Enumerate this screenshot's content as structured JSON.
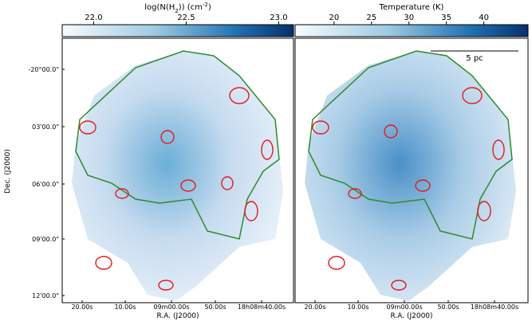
{
  "y_axis": {
    "label": "Dec. (J2000)",
    "ticks": [
      "-20°00.0\"",
      "03'00.0\"",
      "06'00.0\"",
      "09'00.0\"",
      "12'00.0\""
    ]
  },
  "x_axis": {
    "label": "R.A. (J2000)",
    "ticks": [
      "20.00s",
      "10.00s",
      "09m00.00s",
      "50.00s",
      "18h08m40.00s"
    ]
  },
  "panels": [
    {
      "colorbar": {
        "label_parts": [
          "log(N(H",
          "2",
          ")) (cm",
          "-2",
          ")"
        ],
        "lim": [
          21.83,
          23.08
        ],
        "ticks": [
          {
            "value": 22,
            "label": "22.0"
          },
          {
            "value": 22.5,
            "label": "22.5"
          },
          {
            "value": 23,
            "label": "23.0"
          }
        ]
      }
    },
    {
      "colorbar": {
        "label_parts": [
          "Temperature (K)"
        ],
        "lim": [
          14.8,
          45.9
        ],
        "ticks": [
          20,
          25,
          30,
          35,
          40
        ]
      },
      "scalebar": "5 pc"
    }
  ]
}
